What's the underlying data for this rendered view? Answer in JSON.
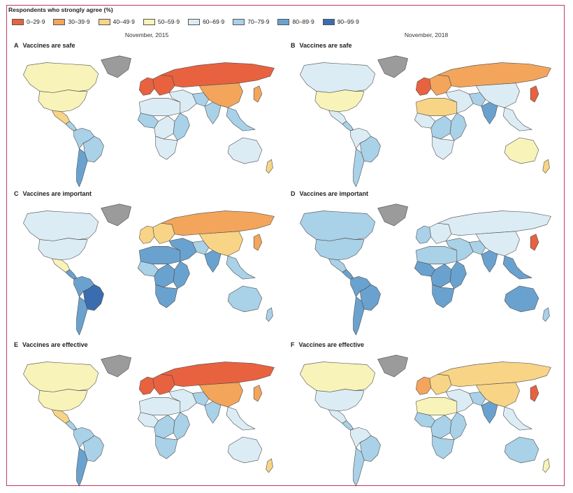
{
  "legend": {
    "title": "Respondents who strongly agree (%)",
    "items": [
      {
        "label": "0–29·9",
        "color": "#e8623f"
      },
      {
        "label": "30–39·9",
        "color": "#f3a55c"
      },
      {
        "label": "40–49·9",
        "color": "#f8d487"
      },
      {
        "label": "50–59·9",
        "color": "#f8f3b8"
      },
      {
        "label": "60–69·9",
        "color": "#dcecf5"
      },
      {
        "label": "70–79·9",
        "color": "#a9d1e8"
      },
      {
        "label": "80–89·9",
        "color": "#6aa2cf"
      },
      {
        "label": "90–99·9",
        "color": "#3a6daf"
      }
    ],
    "no_data_color": "#9b9b9b"
  },
  "columns": {
    "left": "November, 2015",
    "right": "November, 2018"
  },
  "panels": [
    {
      "letter": "A",
      "title": "Vaccines are safe",
      "year": "2015",
      "regions": {
        "greenland": "nodata",
        "canada": "50",
        "usa": "50",
        "mexico": "40",
        "central_america": "70",
        "south_america": "70",
        "brazil": "70",
        "argentina": "80",
        "western_europe": "0",
        "eastern_europe": "0",
        "russia": "0",
        "north_africa": "60",
        "west_africa": "70",
        "central_africa": "60",
        "east_africa": "70",
        "southern_africa": "60",
        "middle_east": "60",
        "iran": "70",
        "india": "70",
        "china": "30",
        "southeast_asia": "70",
        "japan": "30",
        "australia": "60",
        "new_zealand": "40"
      }
    },
    {
      "letter": "B",
      "title": "Vaccines are safe",
      "year": "2018",
      "regions": {
        "greenland": "nodata",
        "canada": "60",
        "usa": "50",
        "mexico": "60",
        "central_america": "70",
        "south_america": "60",
        "brazil": "70",
        "argentina": "70",
        "western_europe": "0",
        "eastern_europe": "30",
        "russia": "30",
        "north_africa": "40",
        "west_africa": "60",
        "central_africa": "70",
        "east_africa": "70",
        "southern_africa": "60",
        "middle_east": "60",
        "iran": "70",
        "india": "80",
        "china": "60",
        "southeast_asia": "60",
        "japan": "0",
        "australia": "50",
        "new_zealand": "40"
      }
    },
    {
      "letter": "C",
      "title": "Vaccines are important",
      "year": "2015",
      "regions": {
        "greenland": "nodata",
        "canada": "60",
        "usa": "60",
        "mexico": "50",
        "central_america": "80",
        "south_america": "80",
        "brazil": "90",
        "argentina": "80",
        "western_europe": "40",
        "eastern_europe": "40",
        "russia": "30",
        "north_africa": "80",
        "west_africa": "70",
        "central_africa": "80",
        "east_africa": "80",
        "southern_africa": "80",
        "middle_east": "80",
        "iran": "70",
        "india": "80",
        "china": "40",
        "southeast_asia": "70",
        "japan": "30",
        "australia": "70",
        "new_zealand": "70"
      }
    },
    {
      "letter": "D",
      "title": "Vaccines are important",
      "year": "2018",
      "regions": {
        "greenland": "nodata",
        "canada": "70",
        "usa": "70",
        "mexico": "70",
        "central_america": "80",
        "south_america": "80",
        "brazil": "80",
        "argentina": "80",
        "western_europe": "70",
        "eastern_europe": "60",
        "russia": "60",
        "north_africa": "70",
        "west_africa": "80",
        "central_africa": "80",
        "east_africa": "80",
        "southern_africa": "80",
        "middle_east": "70",
        "iran": "70",
        "india": "80",
        "china": "60",
        "southeast_asia": "80",
        "japan": "0",
        "australia": "80",
        "new_zealand": "70"
      }
    },
    {
      "letter": "E",
      "title": "Vaccines are effective",
      "year": "2015",
      "regions": {
        "greenland": "nodata",
        "canada": "50",
        "usa": "50",
        "mexico": "40",
        "central_america": "70",
        "south_america": "70",
        "brazil": "70",
        "argentina": "80",
        "western_europe": "0",
        "eastern_europe": "0",
        "russia": "0",
        "north_africa": "60",
        "west_africa": "60",
        "central_africa": "70",
        "east_africa": "70",
        "southern_africa": "70",
        "middle_east": "60",
        "iran": "70",
        "india": "70",
        "china": "30",
        "southeast_asia": "60",
        "japan": "30",
        "australia": "60",
        "new_zealand": "40"
      }
    },
    {
      "letter": "F",
      "title": "Vaccines are effective",
      "year": "2018",
      "regions": {
        "greenland": "nodata",
        "canada": "50",
        "usa": "60",
        "mexico": "60",
        "central_america": "70",
        "south_america": "60",
        "brazil": "70",
        "argentina": "70",
        "western_europe": "30",
        "eastern_europe": "40",
        "russia": "40",
        "north_africa": "50",
        "west_africa": "70",
        "central_africa": "70",
        "east_africa": "70",
        "southern_africa": "70",
        "middle_east": "60",
        "iran": "70",
        "india": "80",
        "china": "40",
        "southeast_asia": "60",
        "japan": "0",
        "australia": "70",
        "new_zealand": "50"
      }
    }
  ]
}
